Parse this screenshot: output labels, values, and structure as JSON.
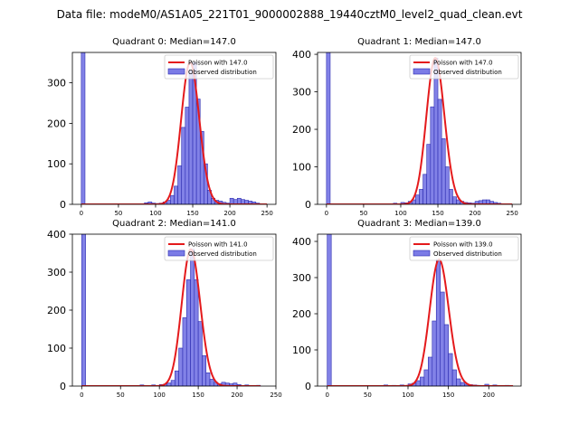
{
  "figure_title": "Data file: modeM0/AS1A05_221T01_9000002888_19440cztM0_level2_quad_clean.evt",
  "colors": {
    "hist_fill": "#7b7be6",
    "hist_edge": "#2b2bb0",
    "poisson_line": "#e41a1c"
  },
  "chart_data": [
    {
      "type": "bar",
      "title": "Quadrant 0: Median=147.0",
      "median": 147.0,
      "legend": {
        "placement": "top-right",
        "line_label": "Poisson with 147.0",
        "hist_label": "Observed distribution"
      },
      "xlim": [
        -12,
        262
      ],
      "xticks": [
        0,
        50,
        100,
        150,
        200,
        250
      ],
      "ylim": [
        0,
        375
      ],
      "yticks": [
        0,
        100,
        200,
        300
      ],
      "bin_width": 5,
      "bins": [
        [
          0,
          375
        ],
        [
          85,
          4
        ],
        [
          90,
          6
        ],
        [
          95,
          3
        ],
        [
          100,
          2
        ],
        [
          105,
          3
        ],
        [
          110,
          6
        ],
        [
          115,
          10
        ],
        [
          120,
          22
        ],
        [
          125,
          45
        ],
        [
          130,
          95
        ],
        [
          135,
          190
        ],
        [
          140,
          240
        ],
        [
          145,
          330
        ],
        [
          150,
          350
        ],
        [
          155,
          260
        ],
        [
          160,
          180
        ],
        [
          165,
          100
        ],
        [
          170,
          35
        ],
        [
          175,
          15
        ],
        [
          180,
          10
        ],
        [
          185,
          8
        ],
        [
          190,
          5
        ],
        [
          195,
          3
        ],
        [
          200,
          15
        ],
        [
          205,
          12
        ],
        [
          210,
          15
        ],
        [
          215,
          12
        ],
        [
          220,
          10
        ],
        [
          225,
          8
        ],
        [
          230,
          6
        ],
        [
          235,
          3
        ]
      ],
      "poisson_x_range": [
        0,
        250
      ]
    },
    {
      "type": "bar",
      "title": "Quadrant 1: Median=147.0",
      "median": 147.0,
      "legend": {
        "placement": "top-right",
        "line_label": "Poisson with 147.0",
        "hist_label": "Observed distribution"
      },
      "xlim": [
        -12,
        262
      ],
      "xticks": [
        0,
        50,
        100,
        150,
        200,
        250
      ],
      "ylim": [
        0,
        405
      ],
      "yticks": [
        0,
        100,
        200,
        300,
        400
      ],
      "bin_width": 5,
      "bins": [
        [
          0,
          405
        ],
        [
          90,
          3
        ],
        [
          100,
          5
        ],
        [
          105,
          4
        ],
        [
          110,
          8
        ],
        [
          115,
          12
        ],
        [
          120,
          25
        ],
        [
          125,
          40
        ],
        [
          130,
          80
        ],
        [
          135,
          160
        ],
        [
          140,
          260
        ],
        [
          145,
          390
        ],
        [
          150,
          280
        ],
        [
          155,
          175
        ],
        [
          160,
          100
        ],
        [
          165,
          40
        ],
        [
          170,
          20
        ],
        [
          175,
          12
        ],
        [
          180,
          8
        ],
        [
          185,
          5
        ],
        [
          190,
          4
        ],
        [
          195,
          3
        ],
        [
          200,
          8
        ],
        [
          205,
          10
        ],
        [
          210,
          12
        ],
        [
          215,
          12
        ],
        [
          220,
          8
        ],
        [
          225,
          5
        ],
        [
          230,
          3
        ]
      ],
      "poisson_x_range": [
        0,
        250
      ]
    },
    {
      "type": "bar",
      "title": "Quadrant 2: Median=141.0",
      "median": 141.0,
      "legend": {
        "placement": "top-right",
        "line_label": "Poisson with 141.0",
        "hist_label": "Observed distribution"
      },
      "xlim": [
        -12,
        250
      ],
      "xticks": [
        0,
        50,
        100,
        150,
        200,
        250
      ],
      "ylim": [
        0,
        400
      ],
      "yticks": [
        0,
        100,
        200,
        300,
        400
      ],
      "bin_width": 5,
      "bins": [
        [
          0,
          400
        ],
        [
          75,
          3
        ],
        [
          90,
          3
        ],
        [
          100,
          4
        ],
        [
          105,
          5
        ],
        [
          110,
          8
        ],
        [
          115,
          15
        ],
        [
          120,
          40
        ],
        [
          125,
          100
        ],
        [
          130,
          180
        ],
        [
          135,
          280
        ],
        [
          140,
          360
        ],
        [
          145,
          280
        ],
        [
          150,
          170
        ],
        [
          155,
          80
        ],
        [
          160,
          35
        ],
        [
          165,
          18
        ],
        [
          170,
          10
        ],
        [
          175,
          6
        ],
        [
          180,
          10
        ],
        [
          185,
          8
        ],
        [
          190,
          6
        ],
        [
          195,
          8
        ],
        [
          200,
          4
        ],
        [
          210,
          3
        ],
        [
          225,
          2
        ]
      ],
      "poisson_x_range": [
        0,
        230
      ]
    },
    {
      "type": "bar",
      "title": "Quadrant 3: Median=139.0",
      "median": 139.0,
      "legend": {
        "placement": "top-right",
        "line_label": "Poisson with 139.0",
        "hist_label": "Observed distribution"
      },
      "xlim": [
        -12,
        240
      ],
      "xticks": [
        0,
        50,
        100,
        150,
        200
      ],
      "ylim": [
        0,
        420
      ],
      "yticks": [
        0,
        100,
        200,
        300,
        400
      ],
      "bin_width": 5,
      "bins": [
        [
          0,
          420
        ],
        [
          70,
          3
        ],
        [
          80,
          2
        ],
        [
          90,
          3
        ],
        [
          100,
          6
        ],
        [
          105,
          8
        ],
        [
          110,
          15
        ],
        [
          115,
          25
        ],
        [
          120,
          45
        ],
        [
          125,
          80
        ],
        [
          130,
          180
        ],
        [
          135,
          350
        ],
        [
          140,
          260
        ],
        [
          145,
          170
        ],
        [
          150,
          90
        ],
        [
          155,
          45
        ],
        [
          160,
          20
        ],
        [
          165,
          10
        ],
        [
          170,
          5
        ],
        [
          175,
          4
        ],
        [
          180,
          3
        ],
        [
          185,
          2
        ],
        [
          195,
          5
        ],
        [
          205,
          3
        ],
        [
          220,
          2
        ]
      ],
      "poisson_x_range": [
        0,
        230
      ]
    }
  ]
}
